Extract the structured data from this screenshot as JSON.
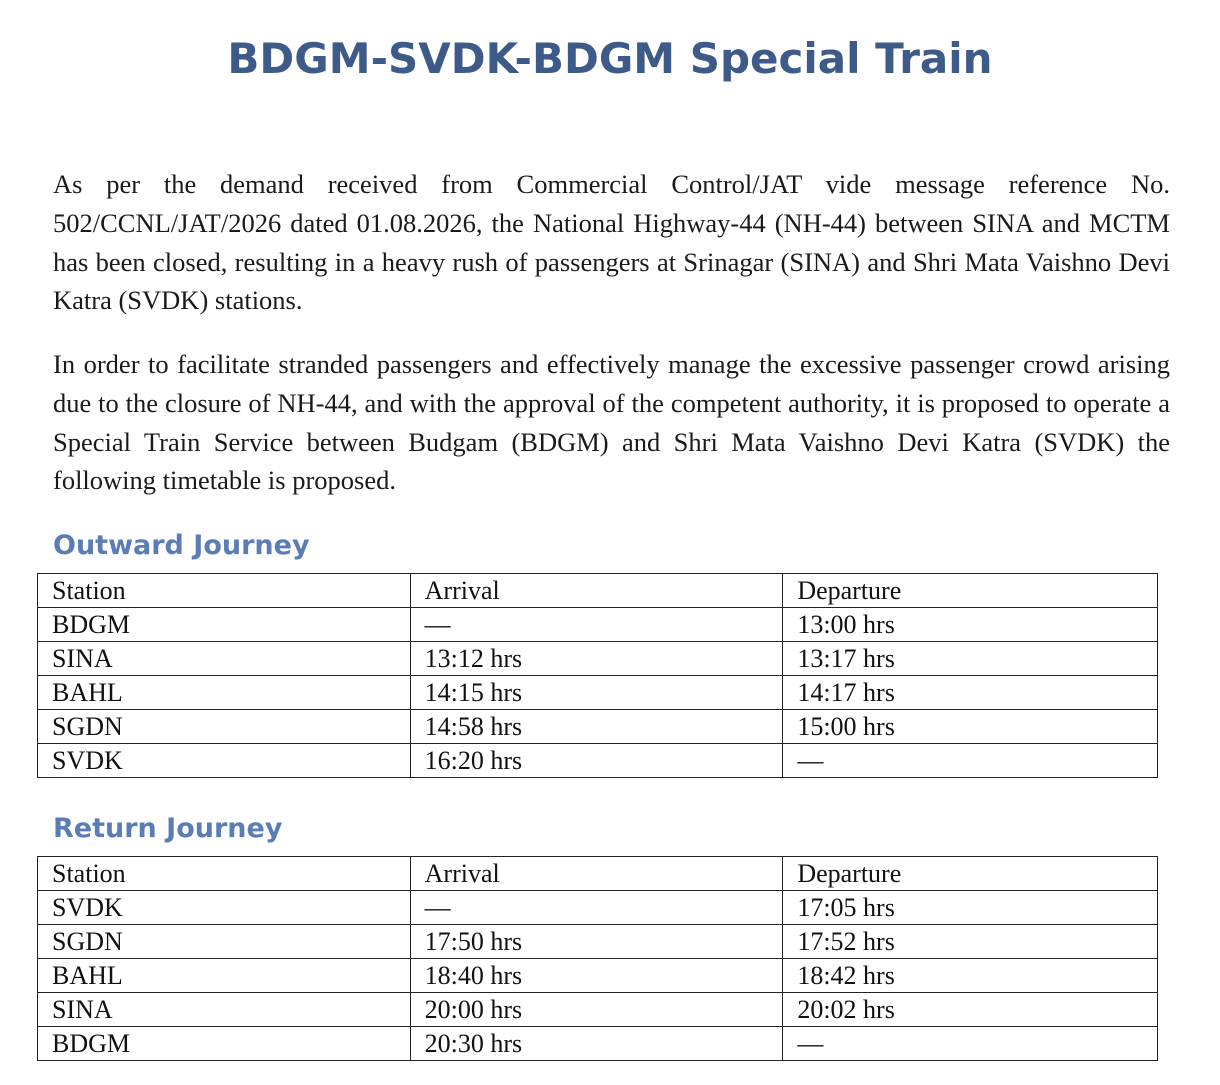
{
  "title": "BDGM-SVDK-BDGM Special Train",
  "paragraphs": [
    "As per the demand received from Commercial Control/JAT vide message reference No. 502/CCNL/JAT/2026 dated 01.08.2026, the National Highway-44 (NH-44) between SINA and MCTM has been closed, resulting in a heavy rush of passengers at Srinagar (SINA) and Shri Mata Vaishno Devi Katra (SVDK) stations.",
    "In order to facilitate stranded passengers and effectively manage the excessive passenger crowd arising due to the closure of NH-44, and with the approval of the competent authority, it is proposed to operate a Special Train Service between Budgam (BDGM) and Shri Mata Vaishno Devi Katra (SVDK) the following timetable is proposed."
  ],
  "outward": {
    "heading": "Outward Journey",
    "headers": [
      "Station",
      "Arrival",
      "Departure"
    ],
    "rows": [
      [
        "BDGM",
        "—",
        "13:00 hrs"
      ],
      [
        "SINA",
        "13:12 hrs",
        "13:17 hrs"
      ],
      [
        "BAHL",
        "14:15 hrs",
        "14:17 hrs"
      ],
      [
        "SGDN",
        "14:58 hrs",
        "15:00 hrs"
      ],
      [
        "SVDK",
        "16:20 hrs",
        "—"
      ]
    ]
  },
  "return": {
    "heading": "Return Journey",
    "headers": [
      "Station",
      "Arrival",
      "Departure"
    ],
    "rows": [
      [
        "SVDK",
        "—",
        "17:05 hrs"
      ],
      [
        "SGDN",
        "17:50 hrs",
        "17:52 hrs"
      ],
      [
        "BAHL",
        "18:40 hrs",
        "18:42 hrs"
      ],
      [
        "SINA",
        "20:00 hrs",
        "20:02 hrs"
      ],
      [
        "BDGM",
        "20:30 hrs",
        "—"
      ]
    ]
  },
  "colors": {
    "title": "#3d5a88",
    "section_heading": "#5a7db5",
    "text": "#1a1a1a",
    "border": "#222222"
  }
}
